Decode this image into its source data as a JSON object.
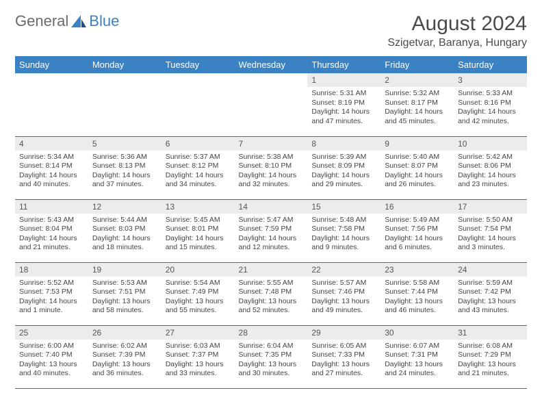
{
  "logo": {
    "general": "General",
    "blue": "Blue"
  },
  "header": {
    "month_title": "August 2024",
    "location": "Szigetvar, Baranya, Hungary"
  },
  "colors": {
    "header_bg": "#3b82c4",
    "header_text": "#ffffff",
    "daynum_bg": "#ececec",
    "row_border": "#3b6ca0",
    "logo_gray": "#6a6a6a",
    "logo_blue": "#3b82c4"
  },
  "weekdays": [
    "Sunday",
    "Monday",
    "Tuesday",
    "Wednesday",
    "Thursday",
    "Friday",
    "Saturday"
  ],
  "weeks": [
    [
      {
        "n": "",
        "sr": "",
        "ss": "",
        "dl": ""
      },
      {
        "n": "",
        "sr": "",
        "ss": "",
        "dl": ""
      },
      {
        "n": "",
        "sr": "",
        "ss": "",
        "dl": ""
      },
      {
        "n": "",
        "sr": "",
        "ss": "",
        "dl": ""
      },
      {
        "n": "1",
        "sr": "Sunrise: 5:31 AM",
        "ss": "Sunset: 8:19 PM",
        "dl": "Daylight: 14 hours and 47 minutes."
      },
      {
        "n": "2",
        "sr": "Sunrise: 5:32 AM",
        "ss": "Sunset: 8:17 PM",
        "dl": "Daylight: 14 hours and 45 minutes."
      },
      {
        "n": "3",
        "sr": "Sunrise: 5:33 AM",
        "ss": "Sunset: 8:16 PM",
        "dl": "Daylight: 14 hours and 42 minutes."
      }
    ],
    [
      {
        "n": "4",
        "sr": "Sunrise: 5:34 AM",
        "ss": "Sunset: 8:14 PM",
        "dl": "Daylight: 14 hours and 40 minutes."
      },
      {
        "n": "5",
        "sr": "Sunrise: 5:36 AM",
        "ss": "Sunset: 8:13 PM",
        "dl": "Daylight: 14 hours and 37 minutes."
      },
      {
        "n": "6",
        "sr": "Sunrise: 5:37 AM",
        "ss": "Sunset: 8:12 PM",
        "dl": "Daylight: 14 hours and 34 minutes."
      },
      {
        "n": "7",
        "sr": "Sunrise: 5:38 AM",
        "ss": "Sunset: 8:10 PM",
        "dl": "Daylight: 14 hours and 32 minutes."
      },
      {
        "n": "8",
        "sr": "Sunrise: 5:39 AM",
        "ss": "Sunset: 8:09 PM",
        "dl": "Daylight: 14 hours and 29 minutes."
      },
      {
        "n": "9",
        "sr": "Sunrise: 5:40 AM",
        "ss": "Sunset: 8:07 PM",
        "dl": "Daylight: 14 hours and 26 minutes."
      },
      {
        "n": "10",
        "sr": "Sunrise: 5:42 AM",
        "ss": "Sunset: 8:06 PM",
        "dl": "Daylight: 14 hours and 23 minutes."
      }
    ],
    [
      {
        "n": "11",
        "sr": "Sunrise: 5:43 AM",
        "ss": "Sunset: 8:04 PM",
        "dl": "Daylight: 14 hours and 21 minutes."
      },
      {
        "n": "12",
        "sr": "Sunrise: 5:44 AM",
        "ss": "Sunset: 8:03 PM",
        "dl": "Daylight: 14 hours and 18 minutes."
      },
      {
        "n": "13",
        "sr": "Sunrise: 5:45 AM",
        "ss": "Sunset: 8:01 PM",
        "dl": "Daylight: 14 hours and 15 minutes."
      },
      {
        "n": "14",
        "sr": "Sunrise: 5:47 AM",
        "ss": "Sunset: 7:59 PM",
        "dl": "Daylight: 14 hours and 12 minutes."
      },
      {
        "n": "15",
        "sr": "Sunrise: 5:48 AM",
        "ss": "Sunset: 7:58 PM",
        "dl": "Daylight: 14 hours and 9 minutes."
      },
      {
        "n": "16",
        "sr": "Sunrise: 5:49 AM",
        "ss": "Sunset: 7:56 PM",
        "dl": "Daylight: 14 hours and 6 minutes."
      },
      {
        "n": "17",
        "sr": "Sunrise: 5:50 AM",
        "ss": "Sunset: 7:54 PM",
        "dl": "Daylight: 14 hours and 3 minutes."
      }
    ],
    [
      {
        "n": "18",
        "sr": "Sunrise: 5:52 AM",
        "ss": "Sunset: 7:53 PM",
        "dl": "Daylight: 14 hours and 1 minute."
      },
      {
        "n": "19",
        "sr": "Sunrise: 5:53 AM",
        "ss": "Sunset: 7:51 PM",
        "dl": "Daylight: 13 hours and 58 minutes."
      },
      {
        "n": "20",
        "sr": "Sunrise: 5:54 AM",
        "ss": "Sunset: 7:49 PM",
        "dl": "Daylight: 13 hours and 55 minutes."
      },
      {
        "n": "21",
        "sr": "Sunrise: 5:55 AM",
        "ss": "Sunset: 7:48 PM",
        "dl": "Daylight: 13 hours and 52 minutes."
      },
      {
        "n": "22",
        "sr": "Sunrise: 5:57 AM",
        "ss": "Sunset: 7:46 PM",
        "dl": "Daylight: 13 hours and 49 minutes."
      },
      {
        "n": "23",
        "sr": "Sunrise: 5:58 AM",
        "ss": "Sunset: 7:44 PM",
        "dl": "Daylight: 13 hours and 46 minutes."
      },
      {
        "n": "24",
        "sr": "Sunrise: 5:59 AM",
        "ss": "Sunset: 7:42 PM",
        "dl": "Daylight: 13 hours and 43 minutes."
      }
    ],
    [
      {
        "n": "25",
        "sr": "Sunrise: 6:00 AM",
        "ss": "Sunset: 7:40 PM",
        "dl": "Daylight: 13 hours and 40 minutes."
      },
      {
        "n": "26",
        "sr": "Sunrise: 6:02 AM",
        "ss": "Sunset: 7:39 PM",
        "dl": "Daylight: 13 hours and 36 minutes."
      },
      {
        "n": "27",
        "sr": "Sunrise: 6:03 AM",
        "ss": "Sunset: 7:37 PM",
        "dl": "Daylight: 13 hours and 33 minutes."
      },
      {
        "n": "28",
        "sr": "Sunrise: 6:04 AM",
        "ss": "Sunset: 7:35 PM",
        "dl": "Daylight: 13 hours and 30 minutes."
      },
      {
        "n": "29",
        "sr": "Sunrise: 6:05 AM",
        "ss": "Sunset: 7:33 PM",
        "dl": "Daylight: 13 hours and 27 minutes."
      },
      {
        "n": "30",
        "sr": "Sunrise: 6:07 AM",
        "ss": "Sunset: 7:31 PM",
        "dl": "Daylight: 13 hours and 24 minutes."
      },
      {
        "n": "31",
        "sr": "Sunrise: 6:08 AM",
        "ss": "Sunset: 7:29 PM",
        "dl": "Daylight: 13 hours and 21 minutes."
      }
    ]
  ]
}
